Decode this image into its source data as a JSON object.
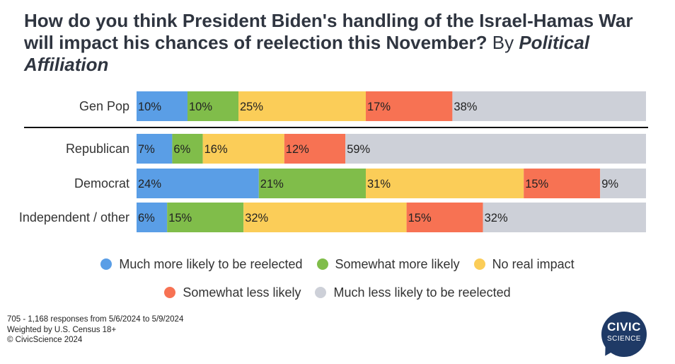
{
  "title": {
    "main": "How do you think President Biden's handling of the Israel-Hamas War will impact his chances of reelection this November?",
    "by": "By",
    "affiliation": "Political Affiliation"
  },
  "chart_data": {
    "type": "bar",
    "orientation": "horizontal-stacked-100",
    "categories": [
      "Gen Pop",
      "Republican",
      "Democrat",
      "Independent / other"
    ],
    "series": [
      {
        "name": "Much more likely to be reelected",
        "color": "#5a9ee6",
        "values": [
          10,
          7,
          24,
          6
        ],
        "labels": [
          "10%",
          "7%",
          "24%",
          "6%"
        ]
      },
      {
        "name": "Somewhat more likely",
        "color": "#80bd4a",
        "values": [
          10,
          6,
          21,
          15
        ],
        "labels": [
          "10%",
          "6%",
          "21%",
          "15%"
        ]
      },
      {
        "name": "No real impact",
        "color": "#fbcd58",
        "values": [
          25,
          16,
          31,
          32
        ],
        "labels": [
          "25%",
          "16%",
          "31%",
          "32%"
        ]
      },
      {
        "name": "Somewhat less likely",
        "color": "#f77253",
        "values": [
          17,
          12,
          15,
          15
        ],
        "labels": [
          "17%",
          "12%",
          "15%",
          "15%"
        ]
      },
      {
        "name": "Much less likely to be reelected",
        "color": "#cdd0d8",
        "values": [
          38,
          59,
          9,
          32
        ],
        "labels": [
          "38%",
          "59%",
          "9%",
          "32%"
        ]
      }
    ],
    "legend_position": "bottom",
    "grid": false
  },
  "footnote": {
    "line1": "705 - 1,168 responses from 5/6/2024 to 5/9/2024",
    "line2": "Weighted by U.S. Census 18+",
    "line3": "© CivicScience 2024"
  },
  "logo": {
    "line1": "CIVIC",
    "line2": "SCIENCE"
  }
}
